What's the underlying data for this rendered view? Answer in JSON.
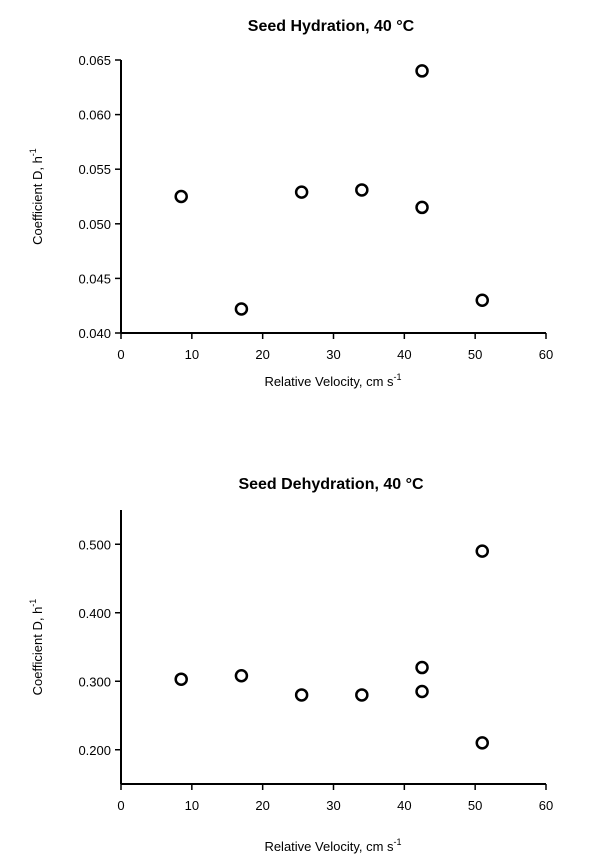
{
  "chart_data": [
    {
      "type": "scatter",
      "title": "Seed Hydration, 40 °C",
      "xlabel": "Relative Velocity, cm s",
      "xlabel_sup": "-1",
      "ylabel": "Coefficient D, h",
      "ylabel_sup": "-1",
      "xlim": [
        0,
        60
      ],
      "ylim": [
        0.04,
        0.065
      ],
      "xticks": [
        "0",
        "10",
        "20",
        "30",
        "40",
        "50",
        "60"
      ],
      "yticks": [
        "0.040",
        "0.045",
        "0.050",
        "0.055",
        "0.060",
        "0.065"
      ],
      "grid": false,
      "marker": "open-circle",
      "points": [
        {
          "x": 8.5,
          "y": 0.0525
        },
        {
          "x": 17.0,
          "y": 0.0422
        },
        {
          "x": 25.5,
          "y": 0.0529
        },
        {
          "x": 34.0,
          "y": 0.0531
        },
        {
          "x": 42.5,
          "y": 0.064
        },
        {
          "x": 42.5,
          "y": 0.0515
        },
        {
          "x": 51.0,
          "y": 0.043
        }
      ]
    },
    {
      "type": "scatter",
      "title": "Seed Dehydration, 40 °C",
      "xlabel": "Relative Velocity, cm s",
      "xlabel_sup": "-1",
      "ylabel": "Coefficient D, h",
      "ylabel_sup": "-1",
      "xlim": [
        0,
        60
      ],
      "ylim": [
        0.15,
        0.55
      ],
      "xticks": [
        "0",
        "10",
        "20",
        "30",
        "40",
        "50",
        "60"
      ],
      "yticks": [
        "0.200",
        "0.300",
        "0.400",
        "0.500"
      ],
      "grid": false,
      "marker": "open-circle",
      "points": [
        {
          "x": 8.5,
          "y": 0.303
        },
        {
          "x": 17.0,
          "y": 0.308
        },
        {
          "x": 25.5,
          "y": 0.28
        },
        {
          "x": 34.0,
          "y": 0.28
        },
        {
          "x": 42.5,
          "y": 0.32
        },
        {
          "x": 42.5,
          "y": 0.285
        },
        {
          "x": 51.0,
          "y": 0.49
        },
        {
          "x": 51.0,
          "y": 0.21
        }
      ]
    }
  ]
}
